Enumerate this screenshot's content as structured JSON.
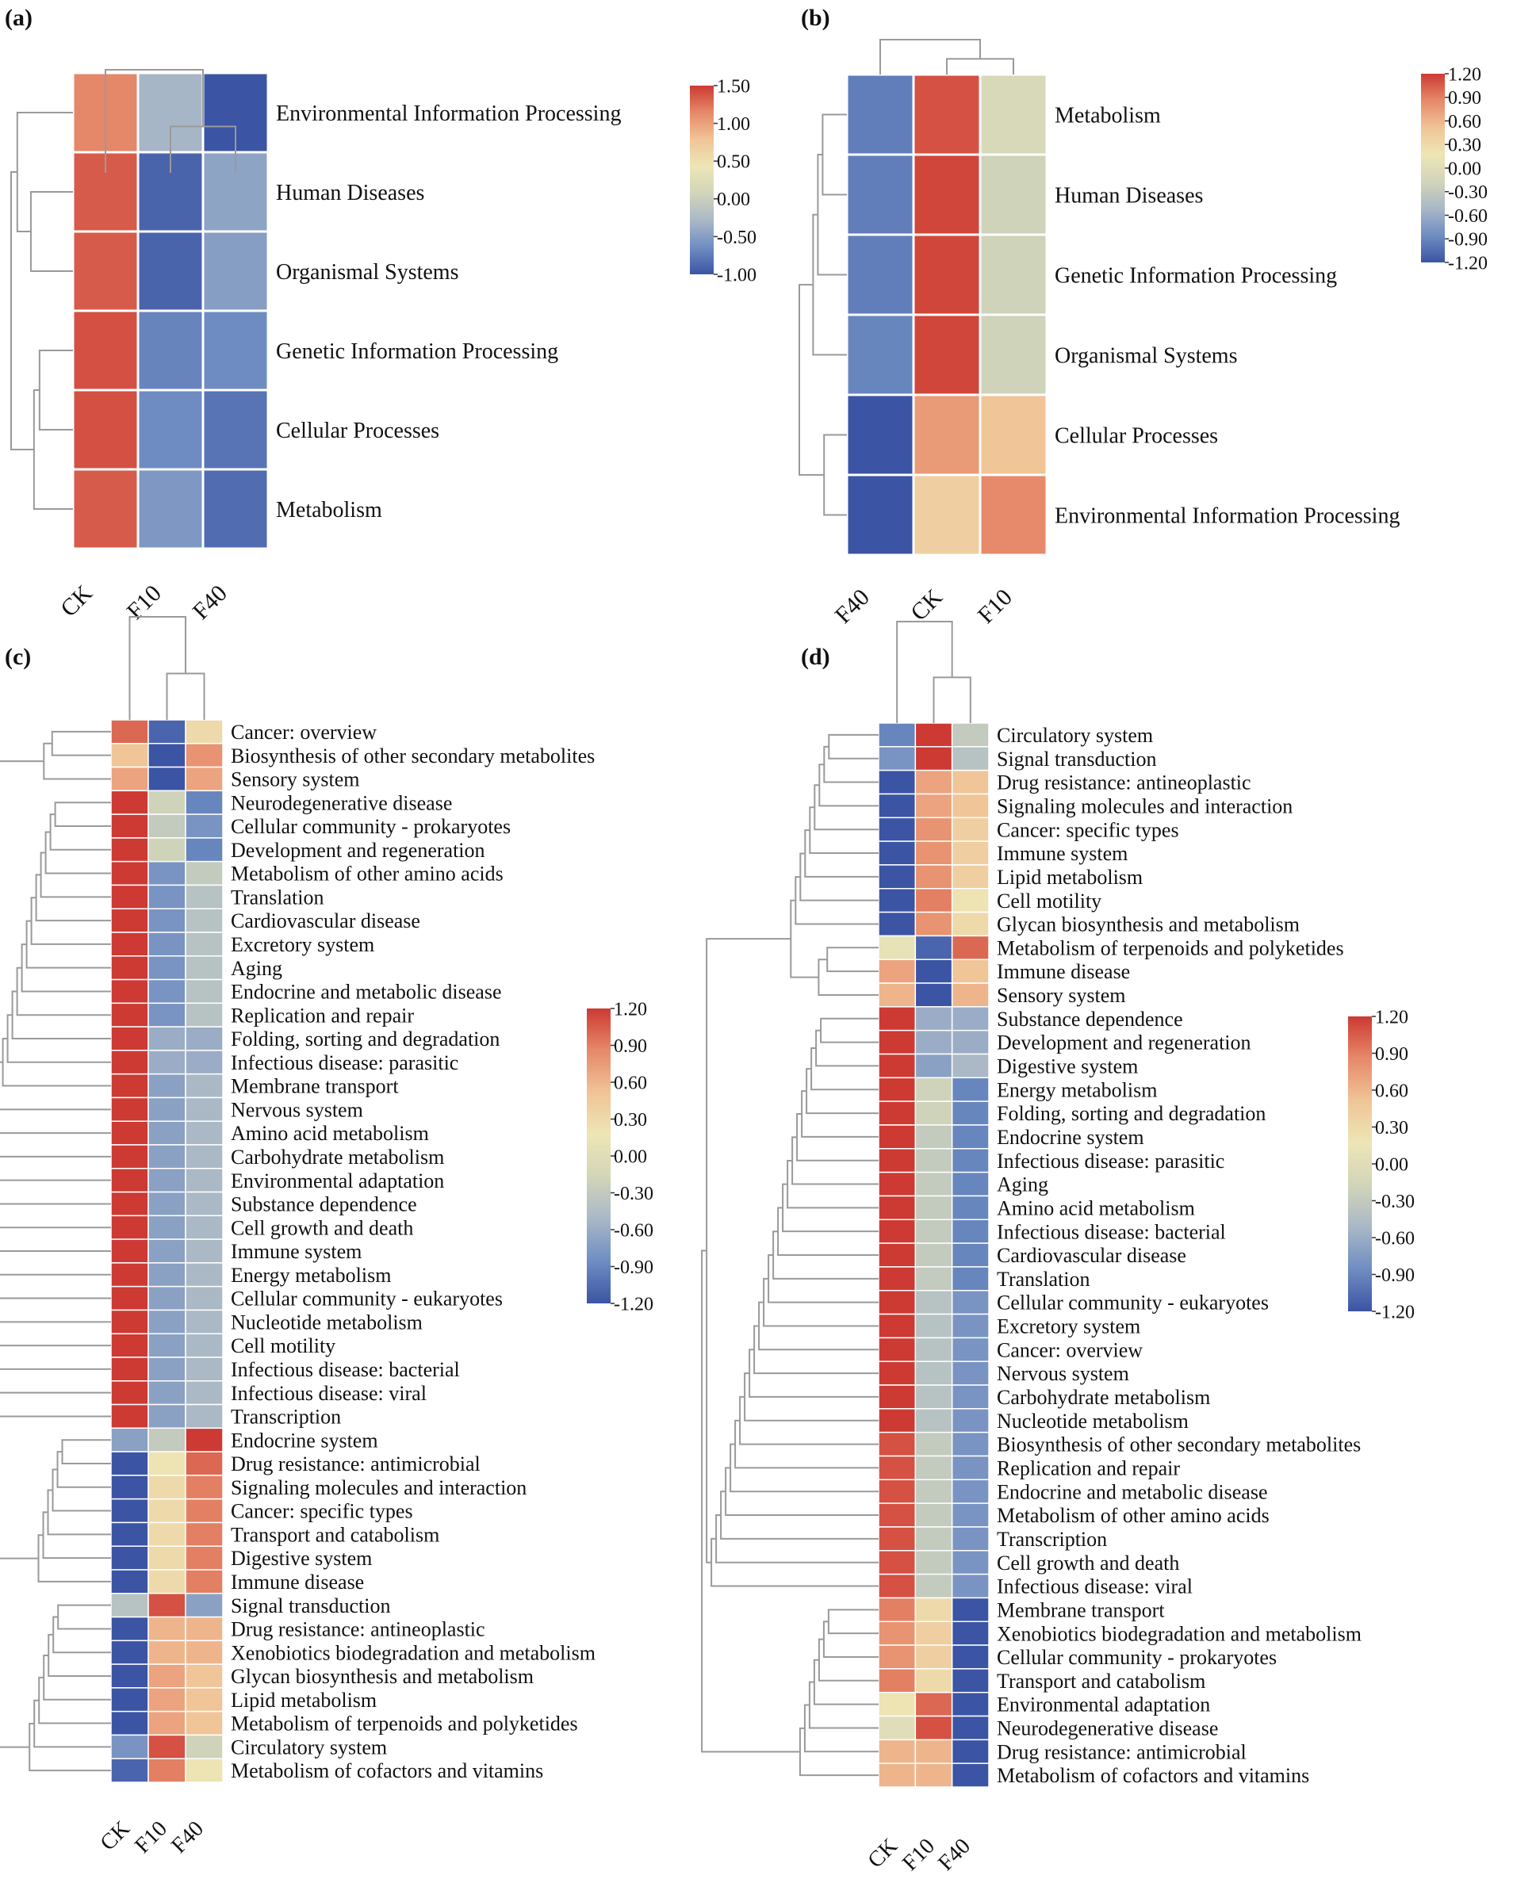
{
  "figure": {
    "panels": [
      "a",
      "b",
      "c",
      "d"
    ]
  },
  "colors": {
    "scale": [
      "#3b54a4",
      "#6f8dc2",
      "#a9b8c7",
      "#d2d5b9",
      "#ede6b6",
      "#f0c497",
      "#e6896a",
      "#cc3a33"
    ],
    "cell_border": "#ffffff",
    "dendrogram": "#9a9a9a"
  },
  "chart_data": [
    {
      "panel": "a",
      "label": "(a)",
      "type": "heatmap",
      "columns": [
        "CK",
        "F10",
        "F40"
      ],
      "rows": [
        "Environmental Information Processing",
        "Human Diseases",
        "Organismal Systems",
        "Genetic Information Processing",
        "Cellular Processes",
        "Metabolism"
      ],
      "values": [
        [
          1.15,
          -0.3,
          -1.0
        ],
        [
          1.35,
          -0.9,
          -0.45
        ],
        [
          1.35,
          -0.9,
          -0.5
        ],
        [
          1.4,
          -0.7,
          -0.65
        ],
        [
          1.4,
          -0.65,
          -0.8
        ],
        [
          1.35,
          -0.55,
          -0.85
        ]
      ],
      "legend": {
        "ticks": [
          "1.50",
          "1.00",
          "0.50",
          "0.00",
          "-0.50",
          "-1.00"
        ],
        "min": -1.0,
        "max": 1.5
      }
    },
    {
      "panel": "b",
      "label": "(b)",
      "type": "heatmap",
      "columns": [
        "F40",
        "CK",
        "F10"
      ],
      "rows": [
        "Metabolism",
        "Human Diseases",
        "Genetic Information Processing",
        "Organismal Systems",
        "Cellular Processes",
        "Environmental Information Processing"
      ],
      "values": [
        [
          -0.95,
          1.1,
          -0.1
        ],
        [
          -0.95,
          1.15,
          -0.2
        ],
        [
          -0.95,
          1.15,
          -0.2
        ],
        [
          -0.9,
          1.15,
          -0.2
        ],
        [
          -1.2,
          0.75,
          0.5
        ],
        [
          -1.2,
          0.4,
          0.85
        ]
      ],
      "legend": {
        "ticks": [
          "1.20",
          "0.90",
          "0.60",
          "0.30",
          "0.00",
          "-0.30",
          "-0.60",
          "-0.90",
          "-1.20"
        ],
        "min": -1.2,
        "max": 1.2
      }
    },
    {
      "panel": "c",
      "label": "(c)",
      "type": "heatmap",
      "columns": [
        "CK",
        "F10",
        "F40"
      ],
      "rows": [
        "Cancer: overview",
        "Biosynthesis of other secondary metabolites",
        "Sensory system",
        "Neurodegenerative disease",
        "Cellular community - prokaryotes",
        "Development and regeneration",
        "Metabolism of other amino acids",
        "Translation",
        "Cardiovascular disease",
        "Excretory system",
        "Aging",
        "Endocrine and metabolic disease",
        "Replication and repair",
        "Folding, sorting and degradation",
        "Infectious disease: parasitic",
        "Membrane transport",
        "Nervous system",
        "Amino acid metabolism",
        "Carbohydrate metabolism",
        "Environmental adaptation",
        "Substance dependence",
        "Cell growth and death",
        "Immune system",
        "Energy metabolism",
        "Cellular community - eukaryotes",
        "Nucleotide metabolism",
        "Cell motility",
        "Infectious disease: bacterial",
        "Infectious disease: viral",
        "Transcription",
        "Endocrine system",
        "Drug resistance: antimicrobial",
        "Signaling molecules and interaction",
        "Cancer: specific types",
        "Transport and catabolism",
        "Digestive system",
        "Immune disease",
        "Signal transduction",
        "Drug resistance: antineoplastic",
        "Xenobiotics biodegradation and metabolism",
        "Glycan biosynthesis and metabolism",
        "Lipid metabolism",
        "Metabolism of terpenoids and polyketides",
        "Circulatory system",
        "Metabolism of cofactors and vitamins"
      ],
      "values": [
        [
          1.0,
          -1.1,
          0.3
        ],
        [
          0.5,
          -1.2,
          0.8
        ],
        [
          0.7,
          -1.2,
          0.7
        ],
        [
          1.2,
          -0.2,
          -0.9
        ],
        [
          1.2,
          -0.3,
          -0.8
        ],
        [
          1.2,
          -0.2,
          -0.9
        ],
        [
          1.2,
          -0.8,
          -0.3
        ],
        [
          1.2,
          -0.8,
          -0.4
        ],
        [
          1.2,
          -0.8,
          -0.4
        ],
        [
          1.2,
          -0.8,
          -0.4
        ],
        [
          1.2,
          -0.8,
          -0.4
        ],
        [
          1.2,
          -0.8,
          -0.4
        ],
        [
          1.2,
          -0.8,
          -0.4
        ],
        [
          1.2,
          -0.6,
          -0.6
        ],
        [
          1.2,
          -0.6,
          -0.6
        ],
        [
          1.2,
          -0.7,
          -0.5
        ],
        [
          1.2,
          -0.7,
          -0.5
        ],
        [
          1.2,
          -0.7,
          -0.5
        ],
        [
          1.2,
          -0.7,
          -0.5
        ],
        [
          1.2,
          -0.7,
          -0.5
        ],
        [
          1.2,
          -0.7,
          -0.5
        ],
        [
          1.2,
          -0.7,
          -0.5
        ],
        [
          1.2,
          -0.7,
          -0.5
        ],
        [
          1.2,
          -0.7,
          -0.5
        ],
        [
          1.2,
          -0.7,
          -0.5
        ],
        [
          1.2,
          -0.7,
          -0.5
        ],
        [
          1.2,
          -0.7,
          -0.5
        ],
        [
          1.2,
          -0.7,
          -0.5
        ],
        [
          1.2,
          -0.7,
          -0.5
        ],
        [
          1.2,
          -0.7,
          -0.5
        ],
        [
          -0.7,
          -0.3,
          1.2
        ],
        [
          -1.2,
          0.2,
          1.0
        ],
        [
          -1.2,
          0.3,
          0.9
        ],
        [
          -1.2,
          0.3,
          0.9
        ],
        [
          -1.2,
          0.3,
          0.9
        ],
        [
          -1.2,
          0.3,
          0.9
        ],
        [
          -1.2,
          0.3,
          0.9
        ],
        [
          -0.4,
          1.1,
          -0.7
        ],
        [
          -1.2,
          0.6,
          0.6
        ],
        [
          -1.2,
          0.6,
          0.6
        ],
        [
          -1.2,
          0.7,
          0.5
        ],
        [
          -1.2,
          0.7,
          0.5
        ],
        [
          -1.2,
          0.7,
          0.5
        ],
        [
          -0.8,
          1.1,
          -0.2
        ],
        [
          -1.1,
          0.9,
          0.2
        ]
      ],
      "legend": {
        "ticks": [
          "1.20",
          "0.90",
          "0.60",
          "0.30",
          "0.00",
          "-0.30",
          "-0.60",
          "-0.90",
          "-1.20"
        ],
        "min": -1.2,
        "max": 1.2
      }
    },
    {
      "panel": "d",
      "label": "(d)",
      "type": "heatmap",
      "columns": [
        "CK",
        "F10",
        "F40"
      ],
      "rows": [
        "Circulatory system",
        "Signal transduction",
        "Drug resistance: antineoplastic",
        "Signaling molecules and interaction",
        "Cancer: specific types",
        "Immune system",
        "Lipid metabolism",
        "Cell motility",
        "Glycan biosynthesis and metabolism",
        "Metabolism of terpenoids and polyketides",
        "Immune disease",
        "Sensory system",
        "Substance dependence",
        "Development and regeneration",
        "Digestive system",
        "Energy metabolism",
        "Folding, sorting and degradation",
        "Endocrine system",
        "Infectious disease: parasitic",
        "Aging",
        "Amino acid metabolism",
        "Infectious disease: bacterial",
        "Cardiovascular disease",
        "Translation",
        "Cellular community - eukaryotes",
        "Excretory system",
        "Cancer: overview",
        "Nervous system",
        "Carbohydrate metabolism",
        "Nucleotide metabolism",
        "Biosynthesis of other secondary metabolites",
        "Replication and repair",
        "Endocrine and metabolic disease",
        "Metabolism of other amino acids",
        "Transcription",
        "Cell growth and death",
        "Infectious disease: viral",
        "Membrane transport",
        "Xenobiotics biodegradation and metabolism",
        "Cellular community - prokaryotes",
        "Transport and catabolism",
        "Environmental adaptation",
        "Neurodegenerative disease",
        "Drug resistance: antimicrobial",
        "Metabolism of cofactors and vitamins"
      ],
      "values": [
        [
          -0.9,
          1.2,
          -0.3
        ],
        [
          -0.8,
          1.2,
          -0.4
        ],
        [
          -1.2,
          0.7,
          0.5
        ],
        [
          -1.2,
          0.7,
          0.5
        ],
        [
          -1.2,
          0.8,
          0.4
        ],
        [
          -1.2,
          0.8,
          0.4
        ],
        [
          -1.2,
          0.8,
          0.4
        ],
        [
          -1.2,
          0.9,
          0.2
        ],
        [
          -1.2,
          0.8,
          0.3
        ],
        [
          0.1,
          -1.1,
          1.0
        ],
        [
          0.7,
          -1.2,
          0.5
        ],
        [
          0.6,
          -1.2,
          0.6
        ],
        [
          1.2,
          -0.6,
          -0.6
        ],
        [
          1.2,
          -0.6,
          -0.6
        ],
        [
          1.2,
          -0.7,
          -0.5
        ],
        [
          1.2,
          -0.2,
          -0.9
        ],
        [
          1.2,
          -0.2,
          -0.9
        ],
        [
          1.2,
          -0.3,
          -0.9
        ],
        [
          1.2,
          -0.3,
          -0.9
        ],
        [
          1.2,
          -0.3,
          -0.9
        ],
        [
          1.2,
          -0.3,
          -0.9
        ],
        [
          1.2,
          -0.3,
          -0.9
        ],
        [
          1.2,
          -0.3,
          -0.9
        ],
        [
          1.2,
          -0.3,
          -0.9
        ],
        [
          1.2,
          -0.4,
          -0.8
        ],
        [
          1.2,
          -0.4,
          -0.8
        ],
        [
          1.2,
          -0.4,
          -0.8
        ],
        [
          1.2,
          -0.4,
          -0.8
        ],
        [
          1.2,
          -0.4,
          -0.8
        ],
        [
          1.2,
          -0.4,
          -0.8
        ],
        [
          1.1,
          -0.3,
          -0.8
        ],
        [
          1.1,
          -0.3,
          -0.8
        ],
        [
          1.1,
          -0.3,
          -0.8
        ],
        [
          1.1,
          -0.3,
          -0.8
        ],
        [
          1.1,
          -0.3,
          -0.8
        ],
        [
          1.1,
          -0.3,
          -0.8
        ],
        [
          1.1,
          -0.3,
          -0.8
        ],
        [
          0.9,
          0.3,
          -1.2
        ],
        [
          0.8,
          0.4,
          -1.2
        ],
        [
          0.8,
          0.4,
          -1.2
        ],
        [
          0.9,
          0.3,
          -1.2
        ],
        [
          0.2,
          1.0,
          -1.2
        ],
        [
          0.0,
          1.1,
          -1.2
        ],
        [
          0.6,
          0.6,
          -1.2
        ],
        [
          0.6,
          0.6,
          -1.2
        ]
      ],
      "legend": {
        "ticks": [
          "1.20",
          "0.90",
          "0.60",
          "0.30",
          "0.00",
          "-0.30",
          "-0.60",
          "-0.90",
          "-1.20"
        ],
        "min": -1.2,
        "max": 1.2
      }
    }
  ]
}
